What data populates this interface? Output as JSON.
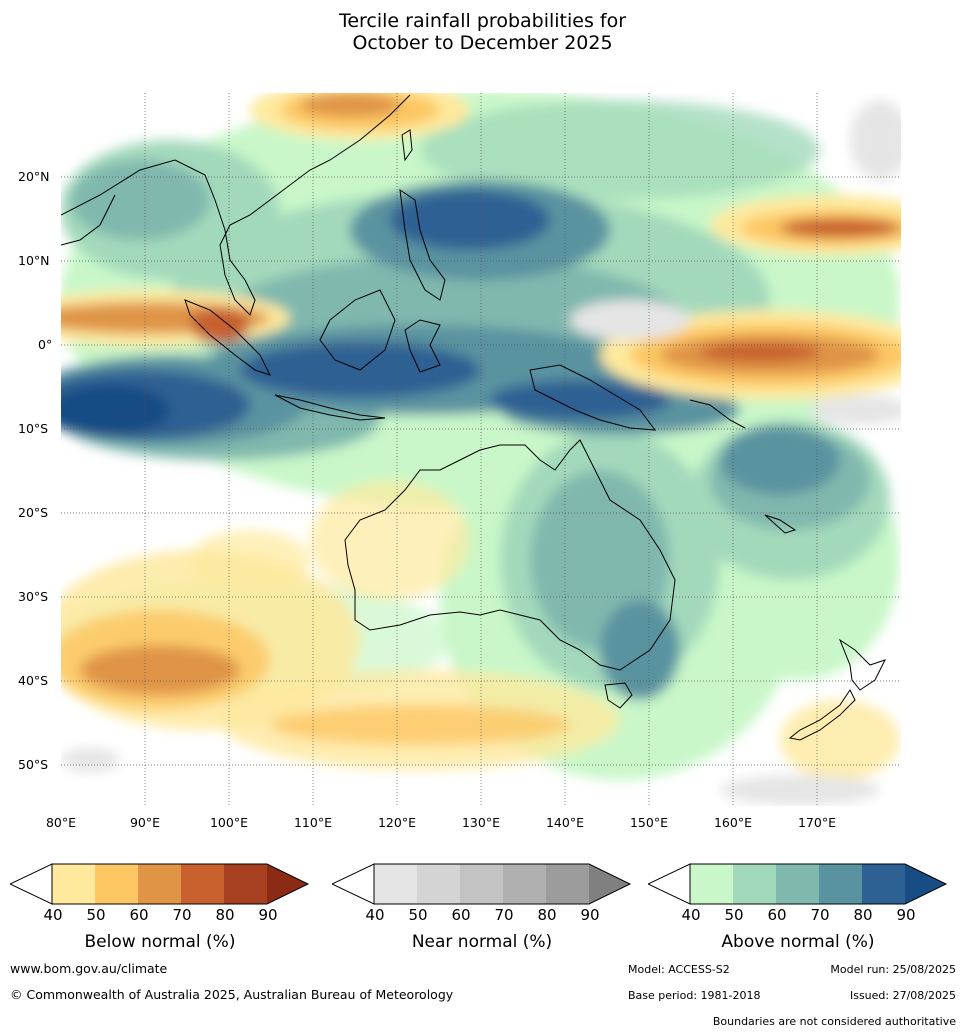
{
  "title": {
    "line1": "Tercile rainfall probabilities for",
    "line2": "October to December 2025"
  },
  "map": {
    "lat_labels": [
      "20°N",
      "10°N",
      "0°",
      "10°S",
      "20°S",
      "30°S",
      "40°S",
      "50°S"
    ],
    "lon_labels": [
      "80°E",
      "90°E",
      "100°E",
      "110°E",
      "120°E",
      "130°E",
      "140°E",
      "150°E",
      "160°E",
      "170°E"
    ],
    "land_outline_color": "#000000"
  },
  "colorbars": {
    "below": {
      "title": "Below normal (%)",
      "ticks": [
        "40",
        "50",
        "60",
        "70",
        "80",
        "90"
      ],
      "colors": [
        "#fee99d",
        "#fdc764",
        "#df9446",
        "#c8612e",
        "#a74122",
        "#8b2b16"
      ]
    },
    "near": {
      "title": "Near normal (%)",
      "ticks": [
        "40",
        "50",
        "60",
        "70",
        "80",
        "90"
      ],
      "colors": [
        "#e5e5e5",
        "#d4d4d4",
        "#c3c3c3",
        "#b0b0b0",
        "#9c9c9c",
        "#808080"
      ]
    },
    "above": {
      "title": "Above normal (%)",
      "ticks": [
        "40",
        "50",
        "60",
        "70",
        "80",
        "90"
      ],
      "colors": [
        "#c9f7c9",
        "#a3d9bb",
        "#80b8ae",
        "#5a93a0",
        "#2d6193",
        "#174c84"
      ]
    }
  },
  "footer": {
    "website": "www.bom.gov.au/climate",
    "copyright": "© Commonwealth of Australia 2025, Australian Bureau of Meteorology",
    "model": "Model: ACCESS-S2",
    "model_run": "Model run: 25/08/2025",
    "base_period": "Base period: 1981-2018",
    "issued": "Issued: 27/08/2025",
    "disclaimer": "Boundaries are not considered authoritative"
  }
}
